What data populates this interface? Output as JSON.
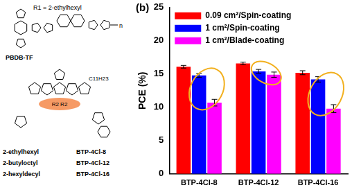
{
  "chart_data": {
    "type": "bar",
    "title": "(b)",
    "y_label": "PCE (%)",
    "categories": [
      "BTP-4Cl-8",
      "BTP-4Cl-12",
      "BTP-4Cl-16"
    ],
    "series": [
      {
        "name": "0.09 cm²/Spin-coating",
        "color": "#ff0000",
        "values": [
          16.1,
          16.6,
          15.2
        ],
        "errors": [
          0.2,
          0.2,
          0.3
        ]
      },
      {
        "name": "1 cm²/Spin-coating",
        "color": "#0000ff",
        "values": [
          14.8,
          15.4,
          14.2
        ],
        "errors": [
          0.3,
          0.3,
          0.4
        ]
      },
      {
        "name": "1 cm²/Blade-coating",
        "color": "#ff00ff",
        "values": [
          10.7,
          14.9,
          9.8
        ],
        "errors": [
          0.5,
          0.4,
          0.6
        ]
      }
    ],
    "ylim": [
      0,
      25
    ],
    "yticks": [
      0,
      5,
      10,
      15,
      20,
      25
    ],
    "grid": false,
    "legend": "upper left"
  },
  "structures": {
    "polymer": {
      "substituent": "R1 = 2-ethylhexyl",
      "name": "PBDB-TF"
    },
    "acceptor": {
      "chain": "C11H23",
      "side_group": "R2 R2"
    },
    "side_chains": [
      [
        "2-ethylhexyl",
        "BTP-4Cl-8"
      ],
      [
        "2-butyloctyl",
        "BTP-4Cl-12"
      ],
      [
        "2-hexyldecyl",
        "BTP-4Cl-16"
      ]
    ]
  }
}
